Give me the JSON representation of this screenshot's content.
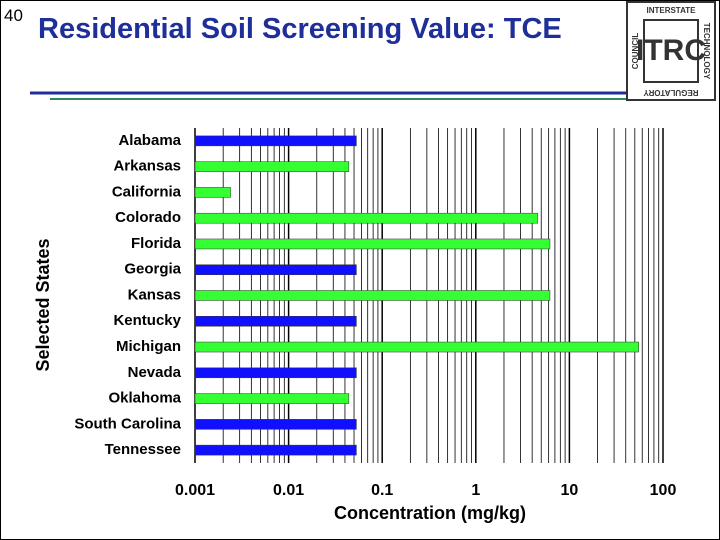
{
  "slide": {
    "number": "40",
    "title": "Residential Soil Screening Value: TCE",
    "logo": {
      "mark": "ITRC",
      "top": "INTERSTATE",
      "right": "TECHNOLOGY",
      "bottom": "REGULATORY",
      "left": "COUNCIL"
    }
  },
  "chart_data": {
    "type": "barh",
    "x_label": "Concentration (mg/kg)",
    "y_label": "Selected States",
    "categories": [
      "Alabama",
      "Arkansas",
      "California",
      "Colorado",
      "Florida",
      "Georgia",
      "Kansas",
      "Kentucky",
      "Michigan",
      "Nevada",
      "Oklahoma",
      "South Carolina",
      "Tennessee"
    ],
    "values": [
      0.053,
      0.044,
      0.0024,
      4.6,
      6.2,
      0.053,
      6.2,
      0.053,
      55,
      0.053,
      0.044,
      0.053,
      0.053
    ],
    "colors": [
      "#1010ff",
      "#33ff33",
      "#33ff33",
      "#33ff33",
      "#33ff33",
      "#1010ff",
      "#33ff33",
      "#1010ff",
      "#33ff33",
      "#1010ff",
      "#33ff33",
      "#1010ff",
      "#1010ff"
    ],
    "xscale": "log",
    "xlim": [
      0.001,
      100
    ],
    "xticks": [
      0.001,
      0.01,
      0.1,
      1,
      10,
      100
    ],
    "xminor": [
      0.002,
      0.003,
      0.004,
      0.005,
      0.006,
      0.007,
      0.008,
      0.009,
      0.02,
      0.03,
      0.04,
      0.05,
      0.06,
      0.07,
      0.08,
      0.09,
      0.2,
      0.3,
      0.4,
      0.5,
      0.6,
      0.7,
      0.8,
      0.9,
      2,
      3,
      4,
      5,
      6,
      7,
      8,
      9,
      20,
      30,
      40,
      50,
      60,
      70,
      80,
      90
    ],
    "grid": true
  }
}
